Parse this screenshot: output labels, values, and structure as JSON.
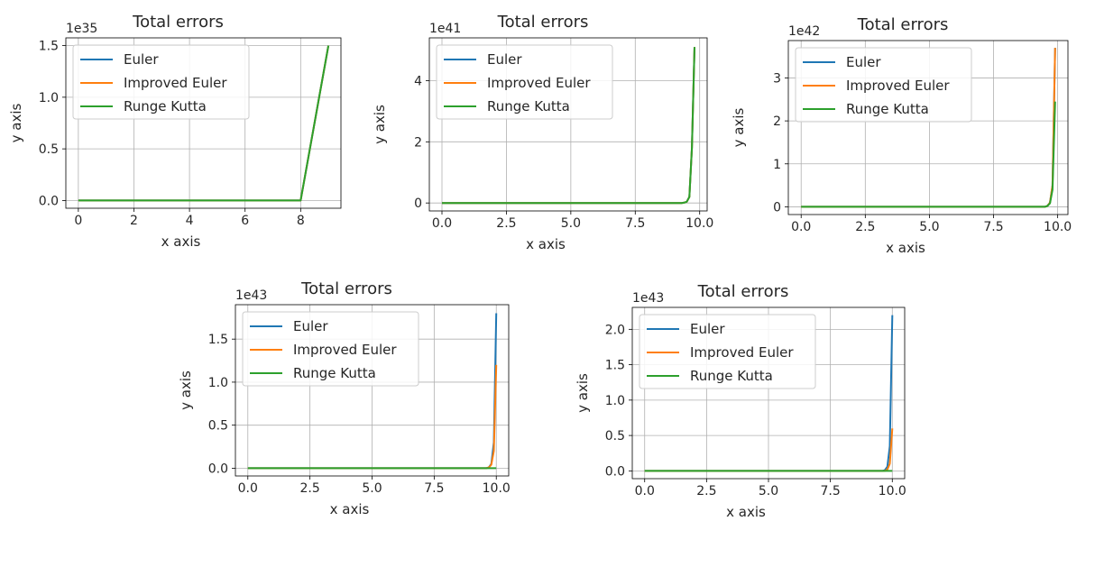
{
  "colors": {
    "euler": "#1f77b4",
    "improved_euler": "#ff7f0e",
    "runge_kutta": "#2ca02c",
    "grid": "#b0b0b0",
    "axes": "#000000",
    "legend_border": "#cccccc"
  },
  "chart_data": [
    {
      "type": "line",
      "title": "Total errors",
      "xlabel": "x axis",
      "ylabel": "y axis",
      "offset_label": "1e35",
      "grid": true,
      "legend_position": "upper-left",
      "xlim": [
        -0.45,
        9.45
      ],
      "ylim": [
        -0.075,
        1.575
      ],
      "xticks": [
        0,
        2,
        4,
        6,
        8
      ],
      "xticklabels": [
        "0",
        "2",
        "4",
        "6",
        "8"
      ],
      "yticks": [
        0,
        0.5,
        1.0,
        1.5
      ],
      "yticklabels": [
        "0.0",
        "0.5",
        "1.0",
        "1.5"
      ],
      "series": [
        {
          "name": "Euler",
          "color": "#1f77b4",
          "x": [
            0,
            1,
            2,
            3,
            4,
            5,
            6,
            7,
            8,
            9
          ],
          "y": [
            0,
            0,
            0,
            0,
            0,
            0,
            0,
            0,
            0,
            1.5
          ]
        },
        {
          "name": "Improved Euler",
          "color": "#ff7f0e",
          "x": [
            0,
            1,
            2,
            3,
            4,
            5,
            6,
            7,
            8,
            9
          ],
          "y": [
            0,
            0,
            0,
            0,
            0,
            0,
            0,
            0,
            0,
            1.5
          ]
        },
        {
          "name": "Runge Kutta",
          "color": "#2ca02c",
          "x": [
            0,
            1,
            2,
            3,
            4,
            5,
            6,
            7,
            8,
            9
          ],
          "y": [
            0,
            0,
            0,
            0,
            0,
            0,
            0,
            0,
            0,
            1.5
          ]
        }
      ]
    },
    {
      "type": "line",
      "title": "Total errors",
      "xlabel": "x axis",
      "ylabel": "y axis",
      "offset_label": "1e41",
      "grid": true,
      "legend_position": "upper-left",
      "xlim": [
        -0.49,
        10.29
      ],
      "ylim": [
        -0.26,
        5.4
      ],
      "xticks": [
        0,
        2.5,
        5,
        7.5,
        10
      ],
      "xticklabels": [
        "0.0",
        "2.5",
        "5.0",
        "7.5",
        "10.0"
      ],
      "yticks": [
        0,
        2,
        4
      ],
      "yticklabels": [
        "0",
        "2",
        "4"
      ],
      "series": [
        {
          "name": "Euler",
          "color": "#1f77b4",
          "x": [
            0,
            9.3,
            9.4,
            9.5,
            9.6,
            9.7,
            9.8
          ],
          "y": [
            0,
            0,
            0.01,
            0.04,
            0.2,
            1.8,
            5.1
          ]
        },
        {
          "name": "Improved Euler",
          "color": "#ff7f0e",
          "x": [
            0,
            9.3,
            9.4,
            9.5,
            9.6,
            9.7,
            9.8
          ],
          "y": [
            0,
            0,
            0.01,
            0.04,
            0.2,
            1.8,
            5.1
          ]
        },
        {
          "name": "Runge Kutta",
          "color": "#2ca02c",
          "x": [
            0,
            9.3,
            9.4,
            9.5,
            9.6,
            9.7,
            9.8
          ],
          "y": [
            0,
            0,
            0.01,
            0.04,
            0.2,
            1.8,
            5.1
          ]
        }
      ]
    },
    {
      "type": "line",
      "title": "Total errors",
      "xlabel": "x axis",
      "ylabel": "y axis",
      "offset_label": "1e42",
      "grid": true,
      "legend_position": "upper-left",
      "xlim": [
        -0.5,
        10.4
      ],
      "ylim": [
        -0.18,
        3.87
      ],
      "xticks": [
        0,
        2.5,
        5,
        7.5,
        10
      ],
      "xticklabels": [
        "0.0",
        "2.5",
        "5.0",
        "7.5",
        "10.0"
      ],
      "yticks": [
        0,
        1,
        2,
        3
      ],
      "yticklabels": [
        "0",
        "1",
        "2",
        "3"
      ],
      "series": [
        {
          "name": "Euler",
          "color": "#1f77b4",
          "x": [
            0,
            9.5,
            9.6,
            9.7,
            9.8,
            9.9
          ],
          "y": [
            0,
            0,
            0.02,
            0.1,
            0.5,
            3.7
          ]
        },
        {
          "name": "Improved Euler",
          "color": "#ff7f0e",
          "x": [
            0,
            9.5,
            9.6,
            9.7,
            9.8,
            9.9
          ],
          "y": [
            0,
            0,
            0.02,
            0.1,
            0.5,
            3.7
          ]
        },
        {
          "name": "Runge Kutta",
          "color": "#2ca02c",
          "x": [
            0,
            9.5,
            9.6,
            9.7,
            9.8,
            9.9
          ],
          "y": [
            0,
            0,
            0.02,
            0.08,
            0.4,
            2.45
          ]
        }
      ]
    },
    {
      "type": "line",
      "title": "Total errors",
      "xlabel": "x axis",
      "ylabel": "y axis",
      "offset_label": "1e43",
      "grid": true,
      "legend_position": "upper-left",
      "xlim": [
        -0.5,
        10.5
      ],
      "ylim": [
        -0.09,
        1.9
      ],
      "xticks": [
        0,
        2.5,
        5,
        7.5,
        10
      ],
      "xticklabels": [
        "0.0",
        "2.5",
        "5.0",
        "7.5",
        "10.0"
      ],
      "yticks": [
        0,
        0.5,
        1.0,
        1.5
      ],
      "yticklabels": [
        "0.0",
        "0.5",
        "1.0",
        "1.5"
      ],
      "series": [
        {
          "name": "Euler",
          "color": "#1f77b4",
          "x": [
            0,
            9.6,
            9.7,
            9.8,
            9.9,
            10.0
          ],
          "y": [
            0,
            0,
            0.01,
            0.05,
            0.3,
            1.8
          ]
        },
        {
          "name": "Improved Euler",
          "color": "#ff7f0e",
          "x": [
            0,
            9.6,
            9.7,
            9.8,
            9.9,
            10.0
          ],
          "y": [
            0,
            0,
            0.01,
            0.04,
            0.2,
            1.2
          ]
        },
        {
          "name": "Runge Kutta",
          "color": "#2ca02c",
          "x": [
            0,
            9.6,
            9.7,
            9.8,
            9.9,
            10.0
          ],
          "y": [
            0,
            0,
            0,
            0,
            0,
            0
          ]
        }
      ]
    },
    {
      "type": "line",
      "title": "Total errors",
      "xlabel": "x axis",
      "ylabel": "y axis",
      "offset_label": "1e43",
      "grid": true,
      "legend_position": "upper-left",
      "xlim": [
        -0.5,
        10.5
      ],
      "ylim": [
        -0.11,
        2.31
      ],
      "xticks": [
        0,
        2.5,
        5,
        7.5,
        10
      ],
      "xticklabels": [
        "0.0",
        "2.5",
        "5.0",
        "7.5",
        "10.0"
      ],
      "yticks": [
        0,
        0.5,
        1.0,
        1.5,
        2.0
      ],
      "yticklabels": [
        "0.0",
        "0.5",
        "1.0",
        "1.5",
        "2.0"
      ],
      "series": [
        {
          "name": "Euler",
          "color": "#1f77b4",
          "x": [
            0,
            9.6,
            9.7,
            9.8,
            9.9,
            10.0
          ],
          "y": [
            0,
            0,
            0.01,
            0.06,
            0.35,
            2.2
          ]
        },
        {
          "name": "Improved Euler",
          "color": "#ff7f0e",
          "x": [
            0,
            9.6,
            9.7,
            9.8,
            9.9,
            10.0
          ],
          "y": [
            0,
            0,
            0,
            0.02,
            0.1,
            0.6
          ]
        },
        {
          "name": "Runge Kutta",
          "color": "#2ca02c",
          "x": [
            0,
            9.6,
            9.7,
            9.8,
            9.9,
            10.0
          ],
          "y": [
            0,
            0,
            0,
            0,
            0,
            0
          ]
        }
      ]
    }
  ]
}
